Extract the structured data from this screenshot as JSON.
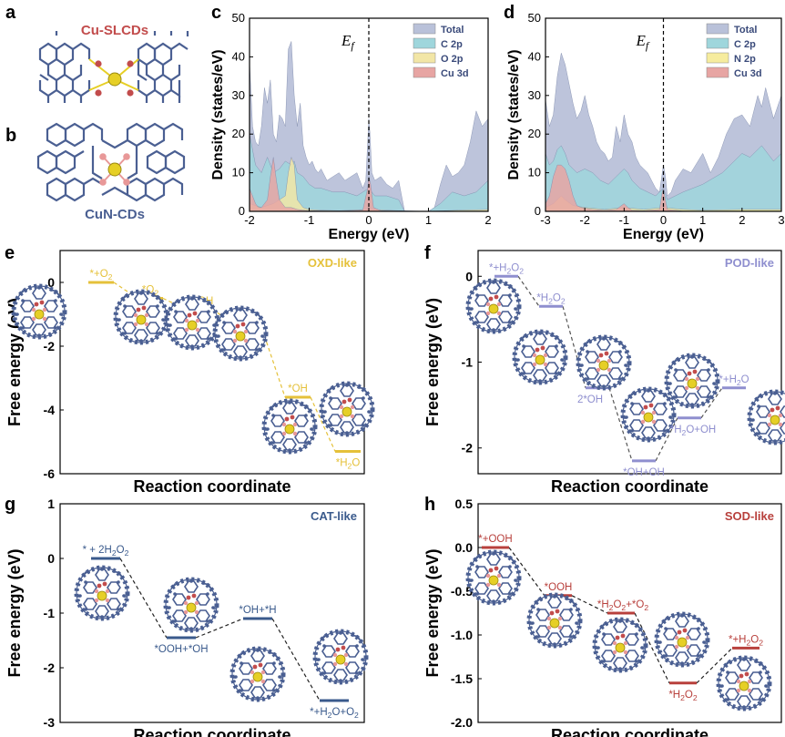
{
  "panels": {
    "a": {
      "label": "a",
      "title": "Cu-SLCDs"
    },
    "b": {
      "label": "b",
      "title": "CuN-CDs"
    },
    "c": {
      "label": "c"
    },
    "d": {
      "label": "d"
    },
    "e": {
      "label": "e"
    },
    "f": {
      "label": "f"
    },
    "g": {
      "label": "g"
    },
    "h": {
      "label": "h"
    }
  },
  "colors": {
    "total": "#b9c1d9",
    "c2p": "#9fd6dc",
    "o2p": "#f2e6a6",
    "n2p": "#f6ec9e",
    "cu3d": "#e7a5a3",
    "oxd": "#e5c13a",
    "pod": "#8f8fcf",
    "cat": "#3a5a8c",
    "sod": "#b8403c",
    "cu_atom": "#e6cf26",
    "lattice": "#4a5f92",
    "o_atom": "#c24c4c",
    "n_atom": "#e89898"
  },
  "chart_data": [
    {
      "panel": "c",
      "type": "area",
      "title": "",
      "xlabel": "Energy (eV)",
      "ylabel": "Density (states/eV)",
      "xlim": [
        -2,
        2
      ],
      "ylim": [
        0,
        50
      ],
      "xticks": [
        "-2",
        "-1",
        "0",
        "1",
        "2"
      ],
      "yticks": [
        "0",
        "10",
        "20",
        "30",
        "40",
        "50"
      ],
      "fermi_label": "Ef",
      "fermi_x": 0,
      "legend_position": "top-right",
      "series": [
        {
          "name": "Total",
          "color_key": "total",
          "x": [
            -2,
            -1.95,
            -1.9,
            -1.85,
            -1.8,
            -1.75,
            -1.7,
            -1.65,
            -1.6,
            -1.55,
            -1.5,
            -1.45,
            -1.4,
            -1.35,
            -1.3,
            -1.25,
            -1.2,
            -1.15,
            -1.1,
            -1.05,
            -1.0,
            -0.95,
            -0.9,
            -0.85,
            -0.8,
            -0.7,
            -0.6,
            -0.5,
            -0.4,
            -0.3,
            -0.2,
            -0.1,
            -0.05,
            0,
            0.02,
            0.05,
            0.1,
            0.2,
            0.3,
            0.4,
            0.5,
            0.55,
            0.6,
            0.8,
            1.0,
            1.1,
            1.2,
            1.3,
            1.4,
            1.5,
            1.6,
            1.7,
            1.8,
            1.9,
            2.0
          ],
          "y": [
            39,
            22,
            18,
            17,
            22,
            32,
            28,
            34,
            20,
            18,
            25,
            24,
            22,
            42,
            44,
            30,
            22,
            28,
            17,
            14,
            12,
            13,
            11,
            10,
            11,
            8,
            9,
            10,
            8,
            9,
            10,
            6,
            8,
            24,
            20,
            10,
            8,
            9,
            7,
            6,
            8,
            4,
            0,
            0,
            0,
            1,
            7,
            12,
            9,
            10,
            12,
            18,
            26,
            22,
            24
          ]
        },
        {
          "name": "C 2p",
          "color_key": "c2p",
          "x": [
            -2,
            -1.9,
            -1.8,
            -1.7,
            -1.6,
            -1.5,
            -1.4,
            -1.3,
            -1.25,
            -1.2,
            -1.1,
            -1.0,
            -0.9,
            -0.8,
            -0.6,
            -0.4,
            -0.2,
            0,
            0.1,
            0.3,
            0.5,
            0.6,
            1.0,
            1.2,
            1.4,
            1.6,
            1.8,
            2.0
          ],
          "y": [
            20,
            12,
            10,
            14,
            10,
            11,
            13,
            12,
            13,
            10,
            9,
            7,
            6,
            6,
            5,
            5,
            4,
            6,
            4,
            4,
            3,
            0,
            0,
            2,
            5,
            4,
            5,
            8
          ]
        },
        {
          "name": "O 2p",
          "color_key": "o2p",
          "x": [
            -2,
            -1.8,
            -1.6,
            -1.4,
            -1.35,
            -1.3,
            -1.25,
            -1.2,
            -1.1,
            -1.0,
            -0.8,
            -0.5,
            0,
            0.5,
            1.0,
            1.5,
            2.0
          ],
          "y": [
            2,
            1,
            2,
            4,
            10,
            14,
            12,
            3,
            1,
            0.5,
            0.3,
            0.2,
            0.5,
            0.2,
            0,
            0.3,
            0.5
          ]
        },
        {
          "name": "Cu 3d",
          "color_key": "cu3d",
          "x": [
            -2,
            -1.95,
            -1.9,
            -1.85,
            -1.8,
            -1.7,
            -1.65,
            -1.6,
            -1.55,
            -1.5,
            -1.45,
            -1.4,
            -1.3,
            -1.2,
            -1.1,
            -1.0,
            -0.5,
            -0.1,
            -0.02,
            0,
            0.03,
            0.08,
            0.2,
            1.0,
            2.0
          ],
          "y": [
            6,
            4,
            2,
            1,
            1,
            3,
            9,
            14,
            8,
            3,
            2,
            1,
            1,
            0.5,
            0.3,
            0.2,
            0.1,
            0.3,
            6,
            9,
            7,
            1,
            0.2,
            0,
            0
          ]
        }
      ]
    },
    {
      "panel": "d",
      "type": "area",
      "title": "",
      "xlabel": "Energy (eV)",
      "ylabel": "Density (states/eV)",
      "xlim": [
        -3,
        3
      ],
      "ylim": [
        0,
        50
      ],
      "xticks": [
        "-3",
        "-2",
        "-1",
        "0",
        "1",
        "2",
        "3"
      ],
      "yticks": [
        "0",
        "10",
        "20",
        "30",
        "40",
        "50"
      ],
      "fermi_label": "Ef",
      "fermi_x": 0,
      "legend_position": "top-right",
      "series": [
        {
          "name": "Total",
          "color_key": "total",
          "x": [
            -3,
            -2.9,
            -2.8,
            -2.7,
            -2.6,
            -2.5,
            -2.4,
            -2.3,
            -2.2,
            -2.1,
            -2.0,
            -1.9,
            -1.8,
            -1.7,
            -1.6,
            -1.5,
            -1.4,
            -1.3,
            -1.2,
            -1.1,
            -1.0,
            -0.9,
            -0.8,
            -0.7,
            -0.6,
            -0.5,
            -0.4,
            -0.3,
            -0.2,
            -0.1,
            0,
            0.05,
            0.1,
            0.2,
            0.3,
            0.5,
            0.7,
            1.0,
            1.2,
            1.4,
            1.6,
            1.8,
            2.0,
            2.2,
            2.4,
            2.5,
            2.6,
            2.8,
            3.0
          ],
          "y": [
            29,
            22,
            25,
            35,
            41,
            38,
            33,
            28,
            24,
            26,
            30,
            25,
            22,
            18,
            16,
            15,
            13,
            14,
            22,
            18,
            25,
            20,
            18,
            14,
            12,
            11,
            10,
            8,
            6,
            5,
            12,
            9,
            4,
            5,
            8,
            11,
            10,
            15,
            10,
            14,
            20,
            24,
            25,
            22,
            30,
            27,
            32,
            24,
            30
          ]
        },
        {
          "name": "C 2p",
          "color_key": "c2p",
          "x": [
            -3,
            -2.9,
            -2.8,
            -2.7,
            -2.6,
            -2.5,
            -2.4,
            -2.2,
            -2.0,
            -1.8,
            -1.6,
            -1.4,
            -1.2,
            -1.0,
            -0.9,
            -0.8,
            -0.6,
            -0.4,
            -0.2,
            0,
            0.1,
            0.3,
            0.5,
            1.0,
            1.5,
            2.0,
            2.2,
            2.5,
            2.8,
            3.0
          ],
          "y": [
            15,
            12,
            13,
            16,
            17,
            15,
            12,
            10,
            11,
            10,
            8,
            7,
            9,
            11,
            10,
            8,
            6,
            5,
            4,
            6,
            3,
            4,
            5,
            7,
            10,
            15,
            14,
            17,
            13,
            15
          ]
        },
        {
          "name": "N 2p",
          "color_key": "n2p",
          "x": [
            -3,
            -2.8,
            -2.6,
            -2.5,
            -2.3,
            -2.0,
            -1.5,
            -1.0,
            -0.5,
            0,
            0.5,
            1.0,
            2.0,
            3.0
          ],
          "y": [
            1,
            2,
            4,
            3,
            1.5,
            1,
            0.5,
            1,
            0.5,
            1,
            0.5,
            0.3,
            0.5,
            0.5
          ]
        },
        {
          "name": "Cu 3d",
          "color_key": "cu3d",
          "x": [
            -3,
            -2.9,
            -2.8,
            -2.7,
            -2.6,
            -2.5,
            -2.4,
            -2.3,
            -2.2,
            -2.1,
            -2.0,
            -1.8,
            -1.5,
            -1.2,
            -1.0,
            -0.9,
            -0.8,
            -0.5,
            -0.1,
            -0.03,
            0,
            0.05,
            0.1,
            0.5,
            1.0,
            3.0
          ],
          "y": [
            2,
            4,
            9,
            12,
            12,
            11,
            8,
            4,
            1.5,
            1,
            0.8,
            0.5,
            0.3,
            0.5,
            2,
            1,
            0.3,
            0.2,
            0.5,
            5,
            6,
            3,
            0.5,
            0.1,
            0,
            0
          ]
        }
      ]
    },
    {
      "panel": "e",
      "type": "line",
      "title": "OXD-like",
      "xlabel": "Reaction coordinate",
      "ylabel": "Free energy (eV)",
      "ylim": [
        -6,
        1
      ],
      "yticks": [
        "0",
        "-2",
        "-4",
        "-6"
      ],
      "color_key": "oxd",
      "labels": [
        "*+O2",
        "*O2",
        "*OOH",
        "*O",
        "*OH",
        "*H2O"
      ],
      "values": [
        0.0,
        -0.5,
        -0.85,
        -1.3,
        -3.6,
        -5.3
      ]
    },
    {
      "panel": "f",
      "type": "line",
      "title": "POD-like",
      "xlabel": "Reaction coordinate",
      "ylabel": "Free energy (eV)",
      "ylim": [
        -2.3,
        0.3
      ],
      "yticks": [
        "0",
        "-1",
        "-2"
      ],
      "color_key": "pod",
      "labels": [
        "*+H2O2",
        "*H2O2",
        "2*OH",
        "*OH+OH",
        "*H2O+OH",
        "*+H2O"
      ],
      "values": [
        0.0,
        -0.35,
        -1.3,
        -2.15,
        -1.65,
        -1.3
      ]
    },
    {
      "panel": "g",
      "type": "line",
      "title": "CAT-like",
      "xlabel": "Reaction coordinate",
      "ylabel": "Free energy (eV)",
      "ylim": [
        -3,
        1
      ],
      "yticks": [
        "1",
        "0",
        "-1",
        "-2",
        "-3"
      ],
      "color_key": "cat",
      "labels": [
        "* + 2H2O2",
        "*OOH+*OH",
        "*OH+*H",
        "*+H2O+O2"
      ],
      "values": [
        0.0,
        -1.45,
        -1.1,
        -2.6
      ]
    },
    {
      "panel": "h",
      "type": "line",
      "title": "SOD-like",
      "xlabel": "Reaction coordinate",
      "ylabel": "Free energy (eV)",
      "ylim": [
        -2.0,
        0.5
      ],
      "yticks": [
        "0.5",
        "0.0",
        "-0.5",
        "-1.0",
        "-1.5",
        "-2.0"
      ],
      "color_key": "sod",
      "labels": [
        "*+OOH",
        "*OOH",
        "*H2O2+*O2",
        "*H2O2",
        "*+H2O2"
      ],
      "values": [
        0.0,
        -0.55,
        -0.75,
        -1.55,
        -1.15
      ]
    }
  ]
}
